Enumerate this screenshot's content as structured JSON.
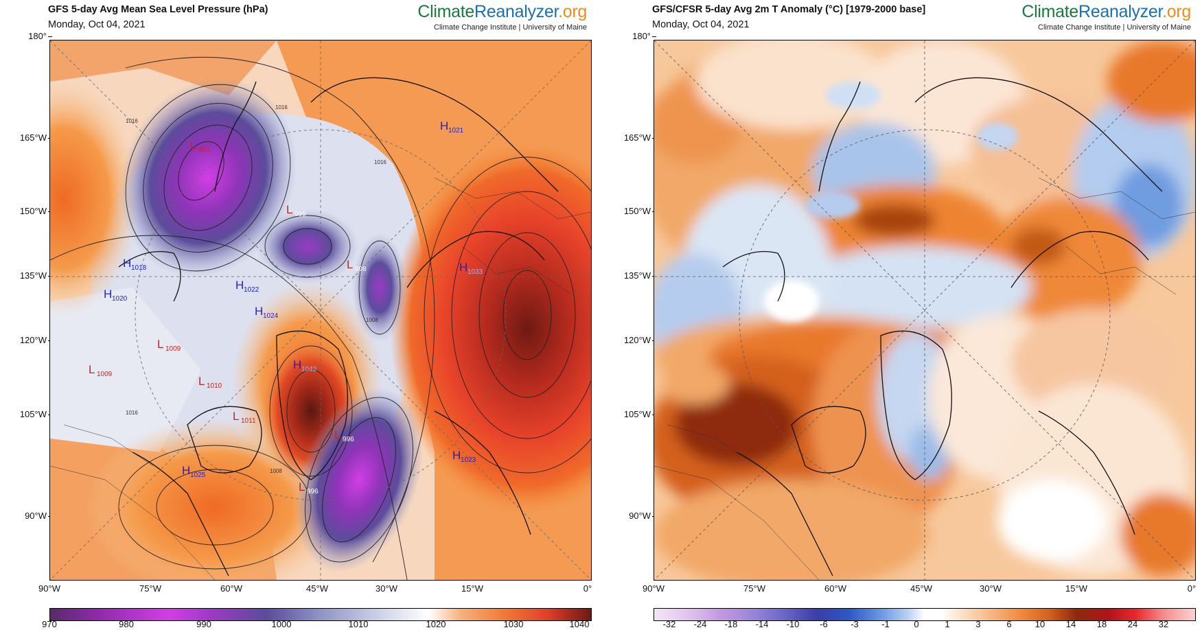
{
  "left": {
    "title": "GFS 5-day Avg Mean Sea Level Pressure (hPa)",
    "date": "Monday, Oct 04, 2021",
    "brand": {
      "part1": "Climate",
      "part2": "Reanalyzer",
      "part3": ".org",
      "sub": "Climate Change Institute | University of Maine"
    },
    "lat_labels": [
      "180°",
      "165°W",
      "150°W",
      "135°W",
      "120°W",
      "105°W",
      "90°W"
    ],
    "lon_labels": [
      "90°W",
      "75°W",
      "60°W",
      "45°W",
      "30°W",
      "15°W",
      "0°"
    ],
    "colorbar_ticks": [
      "970",
      "980",
      "990",
      "1000",
      "1010",
      "1020",
      "1030",
      "1040"
    ],
    "pressure_centers": [
      {
        "type": "L",
        "value": "991"
      },
      {
        "type": "L",
        "value": "995"
      },
      {
        "type": "L",
        "value": "998"
      },
      {
        "type": "H",
        "value": "1033"
      },
      {
        "type": "H",
        "value": "1021"
      },
      {
        "type": "H",
        "value": "1018"
      },
      {
        "type": "H",
        "value": "1020"
      },
      {
        "type": "H",
        "value": "1022"
      },
      {
        "type": "H",
        "value": "1024"
      },
      {
        "type": "H",
        "value": "1042"
      },
      {
        "type": "L",
        "value": "1009"
      },
      {
        "type": "L",
        "value": "1009"
      },
      {
        "type": "L",
        "value": "1010"
      },
      {
        "type": "L",
        "value": "1011"
      },
      {
        "type": "L",
        "value": "996"
      },
      {
        "type": "L",
        "value": "996"
      },
      {
        "type": "H",
        "value": "1025"
      },
      {
        "type": "H",
        "value": "1023"
      }
    ],
    "isobar_labels": [
      "1016",
      "1016",
      "1016",
      "1008",
      "1008",
      "1016"
    ]
  },
  "right": {
    "title": "GFS/CFSR 5-day Avg 2m T Anomaly (°C) [1979-2000 base]",
    "date": "Monday, Oct 04, 2021",
    "brand": {
      "part1": "Climate",
      "part2": "Reanalyzer",
      "part3": ".org",
      "sub": "Climate Change Institute | University of Maine"
    },
    "lat_labels": [
      "180°",
      "165°W",
      "150°W",
      "135°W",
      "120°W",
      "105°W",
      "90°W"
    ],
    "lon_labels": [
      "90°W",
      "75°W",
      "60°W",
      "45°W",
      "30°W",
      "15°W",
      "0°"
    ],
    "colorbar_ticks": [
      "-32",
      "-24",
      "-18",
      "-14",
      "-10",
      "-6",
      "-3",
      "-1",
      "0",
      "1",
      "3",
      "6",
      "10",
      "14",
      "18",
      "24",
      "32"
    ]
  },
  "colors": {
    "low_purple": "#8a2fa8",
    "high_red": "#7a1a10",
    "label_low": "#d02020",
    "label_high": "#2020d0",
    "warm_anom": "#e36a10",
    "cold_anom": "#5b8fd6"
  }
}
